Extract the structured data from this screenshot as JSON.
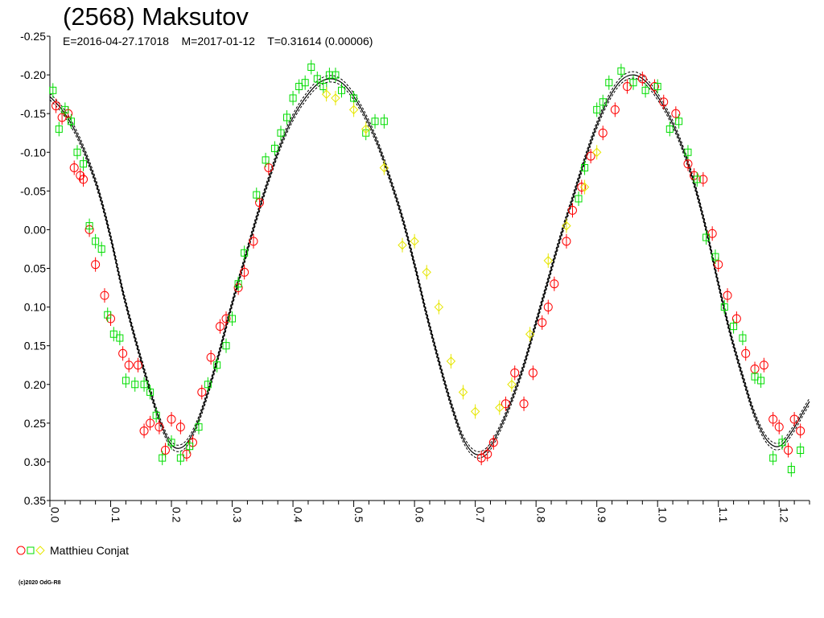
{
  "title": "(2568) Maksutov",
  "subtitle": "E=2016-04-27.17018    M=2017-01-12    T=0.31614 (0.00006)",
  "legend": {
    "label": "Matthieu Conjat",
    "marker_colors": [
      "#ff0000",
      "#00dd00",
      "#e6e600"
    ]
  },
  "copyright": "(c)2020 OdG-R8",
  "chart_data": {
    "type": "scatter",
    "title": "(2568) Maksutov",
    "xlabel": "",
    "ylabel": "",
    "xlim": [
      0,
      1.25
    ],
    "ylim": [
      -0.25,
      0.35
    ],
    "y_inverted": true,
    "x_tick_labels": [
      "0.0",
      "0.1",
      "0.2",
      "0.3",
      "0.4",
      "0.5",
      "0.6",
      "0.7",
      "0.8",
      "0.9",
      "1.0",
      "1.1",
      "1.2"
    ],
    "y_tick_labels": [
      "-0.25",
      "-0.20",
      "-0.15",
      "-0.10",
      "-0.05",
      "0.00",
      "0.05",
      "0.10",
      "0.15",
      "0.20",
      "0.25",
      "0.30",
      "0.35"
    ],
    "colors": {
      "red": "#ff0000",
      "green": "#00dd00",
      "yellow": "#e6e600",
      "curve": "#000000"
    },
    "fit_curve": {
      "name": "",
      "x": [
        0.0,
        0.02,
        0.04,
        0.06,
        0.08,
        0.1,
        0.12,
        0.14,
        0.16,
        0.18,
        0.2,
        0.22,
        0.24,
        0.26,
        0.28,
        0.3,
        0.32,
        0.34,
        0.36,
        0.38,
        0.4,
        0.42,
        0.44,
        0.46,
        0.48,
        0.5,
        0.52,
        0.54,
        0.56,
        0.58,
        0.6,
        0.62,
        0.64,
        0.66,
        0.68,
        0.7,
        0.72,
        0.74,
        0.76,
        0.78,
        0.8,
        0.82,
        0.84,
        0.86,
        0.88,
        0.9,
        0.92,
        0.94,
        0.96,
        0.98,
        1.0,
        1.02,
        1.04,
        1.06,
        1.08,
        1.1,
        1.12,
        1.14,
        1.16,
        1.18,
        1.2,
        1.22,
        1.24,
        1.25
      ],
      "y": [
        -0.172,
        -0.155,
        -0.13,
        -0.095,
        -0.05,
        0.01,
        0.08,
        0.14,
        0.195,
        0.245,
        0.278,
        0.28,
        0.255,
        0.21,
        0.155,
        0.095,
        0.04,
        -0.015,
        -0.065,
        -0.11,
        -0.145,
        -0.17,
        -0.188,
        -0.195,
        -0.19,
        -0.172,
        -0.145,
        -0.11,
        -0.065,
        -0.015,
        0.045,
        0.11,
        0.17,
        0.225,
        0.27,
        0.29,
        0.285,
        0.258,
        0.22,
        0.175,
        0.12,
        0.065,
        0.01,
        -0.04,
        -0.09,
        -0.135,
        -0.17,
        -0.193,
        -0.2,
        -0.192,
        -0.172,
        -0.145,
        -0.108,
        -0.06,
        0.0,
        0.07,
        0.135,
        0.19,
        0.24,
        0.272,
        0.28,
        0.262,
        0.235,
        0.222
      ]
    },
    "series": [
      {
        "marker": "circle",
        "color": "red",
        "x": [
          0.01,
          0.02,
          0.03,
          0.04,
          0.05,
          0.055,
          0.065,
          0.075,
          0.09,
          0.1,
          0.12,
          0.13,
          0.145,
          0.155,
          0.165,
          0.18,
          0.19,
          0.2,
          0.215,
          0.225,
          0.235,
          0.25,
          0.265,
          0.28,
          0.29,
          0.31,
          0.32,
          0.335,
          0.345,
          0.36,
          0.71,
          0.72,
          0.73,
          0.75,
          0.765,
          0.78,
          0.795,
          0.81,
          0.82,
          0.83,
          0.85,
          0.86,
          0.875,
          0.89,
          0.91,
          0.93,
          0.95,
          0.975,
          0.995,
          1.01,
          1.03,
          1.05,
          1.06,
          1.075,
          1.09,
          1.1,
          1.115,
          1.13,
          1.145,
          1.16,
          1.175,
          1.19,
          1.2,
          1.215,
          1.225,
          1.235
        ],
        "y": [
          -0.16,
          -0.145,
          -0.15,
          -0.08,
          -0.07,
          -0.065,
          0.0,
          0.045,
          0.085,
          0.115,
          0.16,
          0.175,
          0.175,
          0.26,
          0.25,
          0.255,
          0.285,
          0.245,
          0.255,
          0.29,
          0.275,
          0.21,
          0.165,
          0.125,
          0.115,
          0.075,
          0.055,
          0.015,
          -0.035,
          -0.08,
          0.295,
          0.29,
          0.275,
          0.225,
          0.185,
          0.225,
          0.185,
          0.12,
          0.1,
          0.07,
          0.015,
          -0.025,
          -0.055,
          -0.095,
          -0.125,
          -0.155,
          -0.185,
          -0.195,
          -0.185,
          -0.165,
          -0.15,
          -0.085,
          -0.07,
          -0.065,
          0.005,
          0.045,
          0.085,
          0.115,
          0.16,
          0.18,
          0.175,
          0.245,
          0.255,
          0.285,
          0.245,
          0.26
        ]
      },
      {
        "marker": "square",
        "color": "green",
        "x": [
          0.005,
          0.015,
          0.025,
          0.035,
          0.045,
          0.055,
          0.065,
          0.075,
          0.085,
          0.095,
          0.105,
          0.115,
          0.125,
          0.14,
          0.155,
          0.165,
          0.175,
          0.185,
          0.2,
          0.215,
          0.23,
          0.245,
          0.26,
          0.275,
          0.29,
          0.3,
          0.31,
          0.32,
          0.34,
          0.355,
          0.37,
          0.38,
          0.39,
          0.4,
          0.41,
          0.42,
          0.43,
          0.44,
          0.45,
          0.46,
          0.47,
          0.48,
          0.5,
          0.52,
          0.535,
          0.55,
          0.87,
          0.88,
          0.9,
          0.91,
          0.92,
          0.94,
          0.96,
          0.98,
          1.0,
          1.02,
          1.035,
          1.05,
          1.065,
          1.08,
          1.095,
          1.11,
          1.125,
          1.14,
          1.16,
          1.17,
          1.19,
          1.205,
          1.22,
          1.235
        ],
        "y": [
          -0.18,
          -0.13,
          -0.155,
          -0.14,
          -0.1,
          -0.085,
          -0.005,
          0.015,
          0.025,
          0.11,
          0.135,
          0.14,
          0.195,
          0.2,
          0.2,
          0.21,
          0.24,
          0.295,
          0.275,
          0.295,
          0.28,
          0.255,
          0.2,
          0.175,
          0.15,
          0.115,
          0.07,
          0.03,
          -0.045,
          -0.09,
          -0.105,
          -0.125,
          -0.145,
          -0.17,
          -0.185,
          -0.19,
          -0.21,
          -0.195,
          -0.185,
          -0.2,
          -0.2,
          -0.18,
          -0.17,
          -0.125,
          -0.14,
          -0.14,
          -0.04,
          -0.08,
          -0.155,
          -0.165,
          -0.19,
          -0.205,
          -0.19,
          -0.18,
          -0.185,
          -0.13,
          -0.14,
          -0.1,
          -0.065,
          0.01,
          0.035,
          0.1,
          0.125,
          0.14,
          0.19,
          0.195,
          0.295,
          0.275,
          0.31,
          0.285
        ]
      },
      {
        "marker": "diamond",
        "color": "yellow",
        "x": [
          0.455,
          0.47,
          0.5,
          0.52,
          0.55,
          0.58,
          0.6,
          0.62,
          0.64,
          0.66,
          0.68,
          0.7,
          0.74,
          0.76,
          0.79,
          0.82,
          0.85,
          0.88,
          0.9
        ],
        "y": [
          -0.175,
          -0.17,
          -0.155,
          -0.13,
          -0.08,
          0.02,
          0.015,
          0.055,
          0.1,
          0.17,
          0.21,
          0.235,
          0.23,
          0.2,
          0.135,
          0.04,
          -0.005,
          -0.055,
          -0.1
        ]
      }
    ]
  }
}
